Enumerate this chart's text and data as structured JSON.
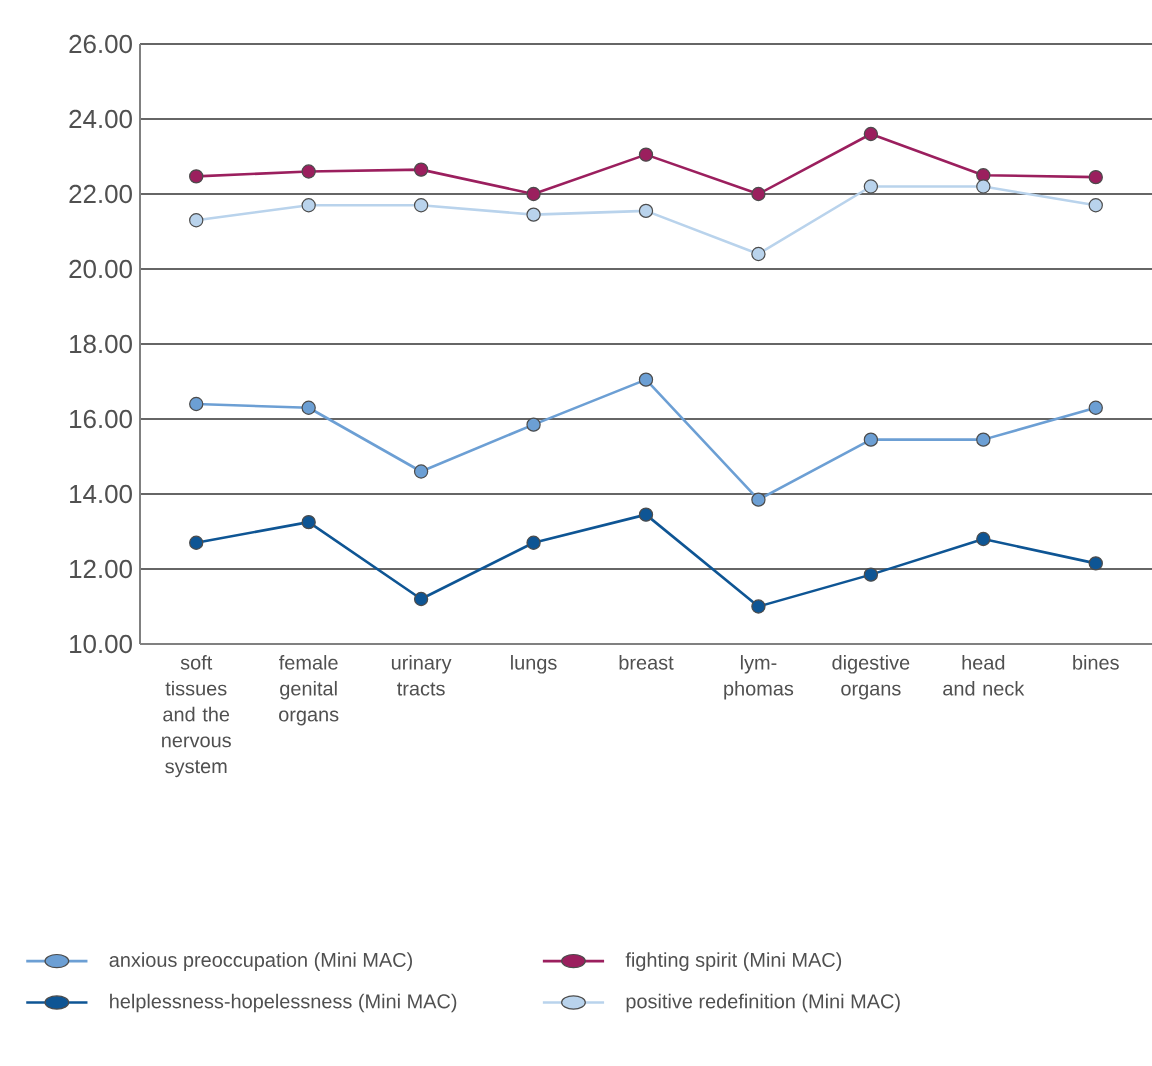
{
  "chart_data": {
    "type": "line",
    "categories": [
      "soft tissues and the nervous system",
      "female genital organs",
      "urinary tracts",
      "lungs",
      "breast",
      "lym-phomas",
      "digestive organs",
      "head and neck",
      "bines"
    ],
    "series": [
      {
        "name": "anxious preoccupation (Mini MAC)",
        "color": "#6c9fd4",
        "values": [
          16.4,
          16.3,
          14.6,
          15.85,
          17.05,
          13.85,
          15.45,
          15.45,
          16.3
        ]
      },
      {
        "name": "fighting spirit (Mini MAC)",
        "color": "#9b1f5e",
        "values": [
          22.47,
          22.6,
          22.65,
          22.0,
          23.05,
          22.0,
          23.6,
          22.5,
          22.45
        ]
      },
      {
        "name": "helplessness-hopelessness (Mini MAC)",
        "color": "#0e5594",
        "values": [
          12.7,
          13.25,
          11.2,
          12.7,
          13.45,
          11.0,
          11.85,
          12.8,
          12.15
        ]
      },
      {
        "name": "positive redefinition (Mini MAC)",
        "color": "#b9d3ec",
        "values": [
          21.3,
          21.7,
          21.7,
          21.45,
          21.55,
          20.4,
          22.2,
          22.2,
          21.7
        ]
      }
    ],
    "ylim": [
      10,
      26
    ],
    "yticks": [
      {
        "value": 10,
        "label": "10.00"
      },
      {
        "value": 12,
        "label": "12.00"
      },
      {
        "value": 14,
        "label": "14.00"
      },
      {
        "value": 16,
        "label": "16.00"
      },
      {
        "value": 18,
        "label": "18.00"
      },
      {
        "value": 20,
        "label": "20.00"
      },
      {
        "value": 22,
        "label": "22.00"
      },
      {
        "value": 24,
        "label": "24.00"
      },
      {
        "value": 26,
        "label": "26.00"
      }
    ],
    "grid": "y",
    "legend": "bottom",
    "marker": "circle",
    "line_style": "solid"
  }
}
